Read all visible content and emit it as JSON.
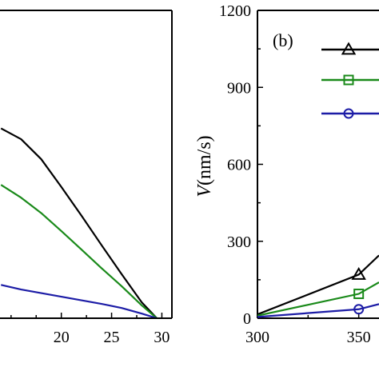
{
  "colors": {
    "black": "#000000",
    "green": "#1a8a1a",
    "blue": "#1c1ca6"
  },
  "chart_data": [
    {
      "type": "line",
      "panel": "a",
      "xlabel": "",
      "ylabel": "",
      "xlim": [
        13.9,
        31
      ],
      "ylim": [
        0,
        1200
      ],
      "x_ticks": [
        "20",
        "25",
        "30"
      ],
      "x_tick_values": [
        20,
        25,
        30
      ],
      "grid": false,
      "series": [
        {
          "color": "#000000",
          "x": [
            14,
            16,
            18,
            20,
            22,
            24,
            26,
            28,
            29.5
          ],
          "y": [
            740,
            698,
            620,
            512,
            400,
            285,
            172,
            62,
            0
          ]
        },
        {
          "color": "#1a8a1a",
          "x": [
            14,
            16,
            18,
            20,
            22,
            24,
            26,
            28,
            29.5
          ],
          "y": [
            520,
            470,
            410,
            340,
            268,
            195,
            125,
            50,
            0
          ]
        },
        {
          "color": "#1c1ca6",
          "x": [
            14,
            16,
            18,
            20,
            22,
            24,
            26,
            28,
            29.5
          ],
          "y": [
            130,
            112,
            98,
            84,
            70,
            56,
            40,
            18,
            0
          ]
        }
      ]
    },
    {
      "type": "line",
      "panel": "b",
      "panel_tag": "(b)",
      "xlabel": "",
      "ylabel": "V (nm/s)",
      "ylabel_var": "V",
      "ylabel_unit": "(nm/s)",
      "xlim": [
        300,
        360
      ],
      "ylim": [
        0,
        1200
      ],
      "x_ticks": [
        "300",
        "350"
      ],
      "x_tick_values": [
        300,
        350
      ],
      "y_ticks": [
        "0",
        "300",
        "600",
        "900",
        "1200"
      ],
      "y_tick_values": [
        0,
        300,
        600,
        900,
        1200
      ],
      "grid": false,
      "legend": "top-right",
      "series": [
        {
          "marker": "triangle",
          "color": "#000000",
          "x": [
            300,
            350,
            360
          ],
          "y": [
            15,
            170,
            245
          ]
        },
        {
          "marker": "square",
          "color": "#1a8a1a",
          "x": [
            300,
            350,
            360
          ],
          "y": [
            10,
            95,
            140
          ]
        },
        {
          "marker": "circle",
          "color": "#1c1ca6",
          "x": [
            300,
            350,
            360
          ],
          "y": [
            5,
            35,
            55
          ]
        }
      ]
    }
  ]
}
